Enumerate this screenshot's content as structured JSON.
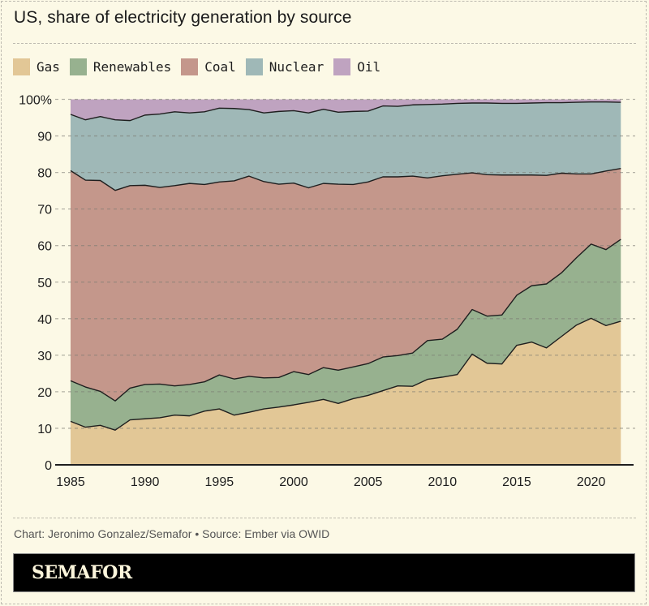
{
  "title": "US, share of electricity generation by source",
  "footer": {
    "credit": "Chart: Jeronimo Gonzalez/Semafor • Source: Ember via OWID",
    "brand": "SEMAFOR"
  },
  "colors": {
    "background": "#fcf9e6",
    "Gas": "#e2c796",
    "Renewables": "#97b18f",
    "Coal": "#c4978b",
    "Nuclear": "#9fb8b7",
    "Oil": "#bfa3c0",
    "line": "#1e1e1e"
  },
  "legend": [
    {
      "label": "Gas"
    },
    {
      "label": "Renewables"
    },
    {
      "label": "Coal"
    },
    {
      "label": "Nuclear"
    },
    {
      "label": "Oil"
    }
  ],
  "chart_data": {
    "type": "area",
    "stacked": true,
    "title": "US, share of electricity generation by source",
    "xlabel": "",
    "ylabel": "",
    "x": [
      1985,
      1986,
      1987,
      1988,
      1989,
      1990,
      1991,
      1992,
      1993,
      1994,
      1995,
      1996,
      1997,
      1998,
      1999,
      2000,
      2001,
      2002,
      2003,
      2004,
      2005,
      2006,
      2007,
      2008,
      2009,
      2010,
      2011,
      2012,
      2013,
      2014,
      2015,
      2016,
      2017,
      2018,
      2019,
      2020,
      2021,
      2022
    ],
    "xlim": [
      1985,
      2022
    ],
    "ylim": [
      0,
      100
    ],
    "x_ticks": [
      1985,
      1990,
      1995,
      2000,
      2005,
      2010,
      2015,
      2020
    ],
    "y_ticks": [
      0,
      10,
      20,
      30,
      40,
      50,
      60,
      70,
      80,
      90,
      100
    ],
    "y_tick_labels": [
      "0",
      "10",
      "20",
      "30",
      "40",
      "50",
      "60",
      "70",
      "80",
      "90",
      "100%"
    ],
    "grid": true,
    "legend_position": "top-left",
    "series": [
      {
        "name": "Gas",
        "values": [
          11.9,
          10.3,
          10.8,
          9.5,
          12.3,
          12.6,
          12.9,
          13.6,
          13.4,
          14.7,
          15.3,
          13.6,
          14.4,
          15.3,
          15.8,
          16.4,
          17.1,
          17.9,
          16.8,
          18.1,
          19.0,
          20.3,
          21.6,
          21.5,
          23.4,
          24.0,
          24.7,
          30.3,
          27.8,
          27.6,
          32.7,
          33.6,
          32.0,
          35.1,
          38.2,
          40.1,
          38.1,
          39.3
        ]
      },
      {
        "name": "Renewables",
        "values": [
          11.1,
          11.0,
          9.3,
          8.0,
          8.7,
          9.4,
          9.2,
          8.0,
          8.6,
          8.0,
          9.3,
          9.9,
          9.8,
          8.5,
          8.1,
          9.1,
          7.6,
          8.7,
          9.1,
          8.7,
          8.7,
          9.2,
          8.3,
          9.1,
          10.6,
          10.4,
          12.4,
          12.2,
          12.9,
          13.4,
          13.7,
          15.4,
          17.5,
          17.4,
          18.4,
          20.3,
          20.8,
          22.4
        ]
      },
      {
        "name": "Coal",
        "values": [
          57.5,
          56.6,
          57.7,
          57.6,
          55.4,
          54.5,
          53.8,
          54.8,
          55.0,
          54.0,
          52.8,
          54.2,
          54.8,
          53.7,
          52.9,
          51.6,
          51.1,
          50.4,
          50.9,
          49.9,
          49.7,
          49.3,
          48.9,
          48.4,
          44.5,
          44.7,
          42.4,
          37.4,
          38.7,
          38.3,
          32.9,
          30.3,
          29.7,
          27.3,
          23.0,
          19.2,
          21.5,
          19.4
        ]
      },
      {
        "name": "Nuclear",
        "values": [
          15.4,
          16.5,
          17.5,
          19.3,
          17.8,
          19.2,
          20.1,
          20.2,
          19.3,
          19.9,
          20.2,
          19.8,
          18.2,
          18.8,
          19.9,
          19.8,
          20.5,
          20.3,
          19.7,
          20.0,
          19.4,
          19.4,
          19.3,
          19.5,
          20.1,
          19.6,
          19.4,
          19.1,
          19.6,
          19.6,
          19.6,
          19.7,
          19.9,
          19.3,
          19.6,
          19.7,
          18.9,
          18.1
        ]
      },
      {
        "name": "Oil",
        "values": [
          4.1,
          5.6,
          4.7,
          5.6,
          5.8,
          4.3,
          4.0,
          3.4,
          3.7,
          3.4,
          2.4,
          2.5,
          2.8,
          3.7,
          3.3,
          3.1,
          3.7,
          2.7,
          3.5,
          3.3,
          3.2,
          1.8,
          1.9,
          1.5,
          1.4,
          1.3,
          1.1,
          1.0,
          1.0,
          1.1,
          1.1,
          1.0,
          0.9,
          0.9,
          0.8,
          0.7,
          0.7,
          0.8
        ]
      }
    ]
  }
}
